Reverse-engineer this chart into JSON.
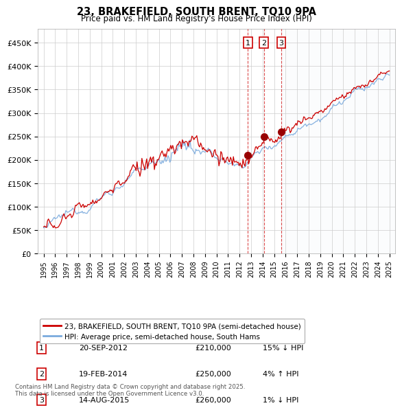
{
  "title": "23, BRAKEFIELD, SOUTH BRENT, TQ10 9PA",
  "subtitle": "Price paid vs. HM Land Registry's House Price Index (HPI)",
  "legend_line1": "23, BRAKEFIELD, SOUTH BRENT, TQ10 9PA (semi-detached house)",
  "legend_line2": "HPI: Average price, semi-detached house, South Hams",
  "footer": "Contains HM Land Registry data © Crown copyright and database right 2025.\nThis data is licensed under the Open Government Licence v3.0.",
  "sales": [
    {
      "num": 1,
      "date": "20-SEP-2012",
      "price": 210000,
      "hpi_pct": "15% ↓ HPI",
      "year": 2012.72
    },
    {
      "num": 2,
      "date": "19-FEB-2014",
      "price": 250000,
      "hpi_pct": "4% ↑ HPI",
      "year": 2014.12
    },
    {
      "num": 3,
      "date": "14-AUG-2015",
      "price": 260000,
      "hpi_pct": "1% ↓ HPI",
      "year": 2015.62
    }
  ],
  "red_color": "#cc0000",
  "blue_color": "#7aaadd",
  "sale_marker_color": "#990000",
  "vline_color": "#cc0000",
  "box_color": "#cc0000",
  "grid_color": "#cccccc",
  "background_color": "#ffffff",
  "highlight_bg": "#e8f0f8",
  "ylim": [
    0,
    480000
  ],
  "xlim_start": 1994.5,
  "xlim_end": 2025.5,
  "yticks": [
    0,
    50000,
    100000,
    150000,
    200000,
    250000,
    300000,
    350000,
    400000,
    450000
  ],
  "ytick_labels": [
    "£0",
    "£50K",
    "£100K",
    "£150K",
    "£200K",
    "£250K",
    "£300K",
    "£350K",
    "£400K",
    "£450K"
  ]
}
